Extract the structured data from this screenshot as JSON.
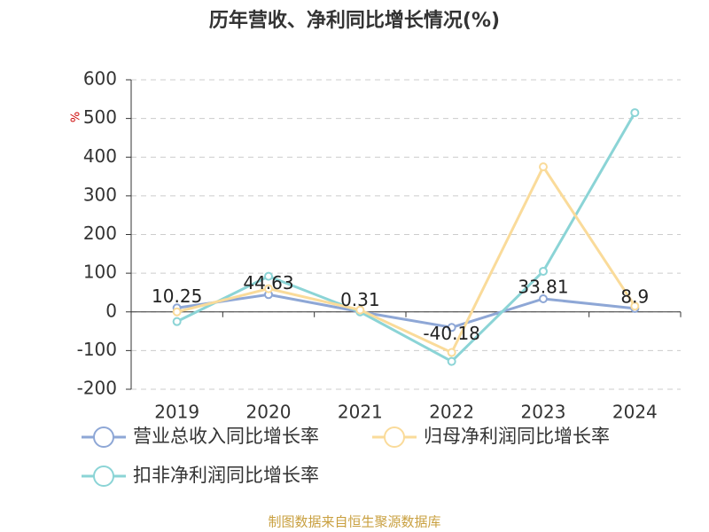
{
  "chart_data": {
    "type": "line",
    "title": "历年营收、净利同比增长情况(%)",
    "y_label": "%",
    "source": "制图数据来自恒生聚源数据库",
    "categories": [
      "2019",
      "2020",
      "2021",
      "2022",
      "2023",
      "2024"
    ],
    "series": [
      {
        "name": "营业总收入同比增长率",
        "color": "#8ea7d6",
        "values": [
          10.25,
          44.63,
          0.31,
          -40.18,
          33.81,
          8.9
        ],
        "show_labels": true
      },
      {
        "name": "归母净利润同比增长率",
        "color": "#fadb9a",
        "values": [
          0,
          60,
          5,
          -105,
          375,
          15
        ],
        "show_labels": false
      },
      {
        "name": "扣非净利润同比增长率",
        "color": "#8bd4d6",
        "values": [
          -25,
          92,
          0,
          -128,
          105,
          515
        ],
        "show_labels": false
      }
    ],
    "ylim": [
      -200,
      600
    ],
    "yticks": [
      -200,
      -100,
      0,
      100,
      200,
      300,
      400,
      500,
      600
    ],
    "grid": true
  }
}
